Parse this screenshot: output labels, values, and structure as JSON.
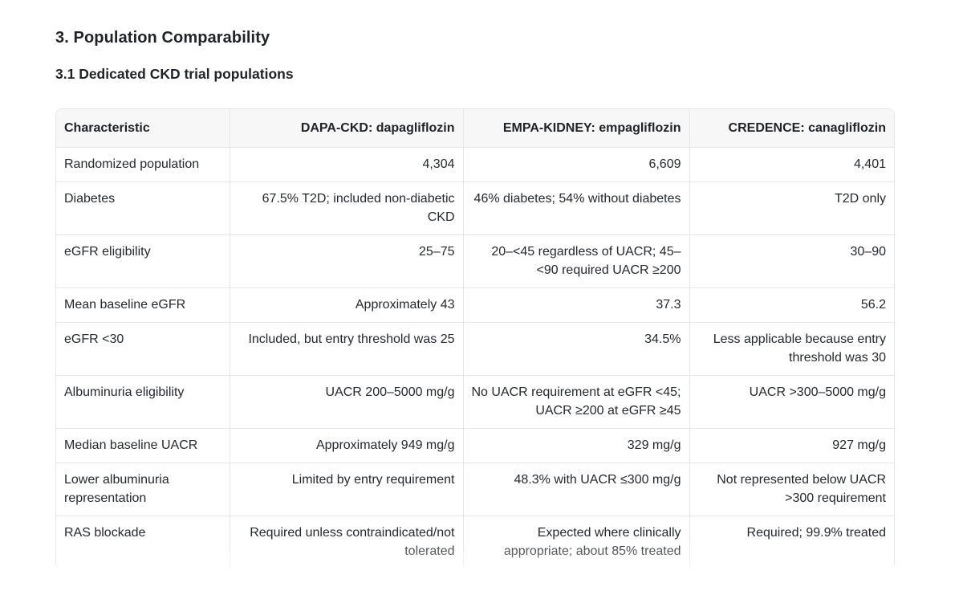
{
  "section_title": "3. Population Comparability",
  "subsection_title": "3.1 Dedicated CKD trial populations",
  "table": {
    "headers": [
      "Characteristic",
      "DAPA-CKD: dapagliflozin",
      "EMPA-KIDNEY: empagliflozin",
      "CREDENCE: canagliflozin"
    ],
    "rows": [
      [
        "Randomized population",
        "4,304",
        "6,609",
        "4,401"
      ],
      [
        "Diabetes",
        "67.5% T2D; included non-diabetic CKD",
        "46% diabetes; 54% without diabetes",
        "T2D only"
      ],
      [
        "eGFR eligibility",
        "25–75",
        "20–<45 regardless of UACR; 45–<90 required UACR ≥200",
        "30–90"
      ],
      [
        "Mean baseline eGFR",
        "Approximately 43",
        "37.3",
        "56.2"
      ],
      [
        "eGFR <30",
        "Included, but entry threshold was 25",
        "34.5%",
        "Less applicable because entry threshold was 30"
      ],
      [
        "Albuminuria eligibility",
        "UACR 200–5000 mg/g",
        "No UACR requirement at eGFR <45; UACR ≥200 at eGFR ≥45",
        "UACR >300–5000 mg/g"
      ],
      [
        "Median baseline UACR",
        "Approximately 949 mg/g",
        "329 mg/g",
        "927 mg/g"
      ],
      [
        "Lower albuminuria representation",
        "Limited by entry requirement",
        "48.3% with UACR ≤300 mg/g",
        "Not represented below UACR >300 requirement"
      ],
      [
        "RAS blockade",
        "Required unless contraindicated/not tolerated",
        "Expected where clinically appropriate; about 85% treated",
        "Required; 99.9% treated"
      ]
    ]
  }
}
